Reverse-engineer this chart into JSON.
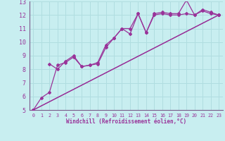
{
  "xlabel": "Windchill (Refroidissement éolien,°C)",
  "bg_color": "#c8eef0",
  "grid_color": "#b0dde0",
  "line_color": "#993399",
  "spine_color": "#7a5c8a",
  "xlim": [
    -0.5,
    23.5
  ],
  "ylim": [
    5,
    13
  ],
  "xticks": [
    0,
    1,
    2,
    3,
    4,
    5,
    6,
    7,
    8,
    9,
    10,
    11,
    12,
    13,
    14,
    15,
    16,
    17,
    18,
    19,
    20,
    21,
    22,
    23
  ],
  "yticks": [
    5,
    6,
    7,
    8,
    9,
    10,
    11,
    12,
    13
  ],
  "series": [
    {
      "x": [
        0,
        1,
        2,
        3,
        4,
        5,
        6,
        7,
        8,
        9,
        10,
        11,
        12,
        13,
        14,
        15,
        16,
        17,
        18,
        19,
        20,
        21,
        22,
        23
      ],
      "y": [
        5.0,
        5.9,
        6.3,
        8.3,
        8.5,
        8.9,
        8.2,
        8.3,
        8.4,
        9.6,
        10.3,
        11.0,
        11.0,
        12.1,
        10.7,
        12.1,
        12.2,
        12.1,
        12.1,
        13.1,
        12.0,
        12.4,
        12.2,
        12.0
      ]
    },
    {
      "x": [
        2,
        3,
        4,
        5,
        6,
        7,
        8,
        9,
        10,
        11,
        12,
        13,
        14,
        15,
        16,
        17,
        18,
        19,
        20,
        21,
        22,
        23
      ],
      "y": [
        8.4,
        8.0,
        8.6,
        9.0,
        8.2,
        8.3,
        8.5,
        9.8,
        10.3,
        11.0,
        10.6,
        12.1,
        10.7,
        12.0,
        12.1,
        12.0,
        12.0,
        12.1,
        12.0,
        12.3,
        12.1,
        12.0
      ]
    },
    {
      "x": [
        0,
        23
      ],
      "y": [
        5.0,
        12.0
      ]
    },
    {
      "x": [
        0,
        23
      ],
      "y": [
        5.0,
        12.0
      ]
    }
  ]
}
